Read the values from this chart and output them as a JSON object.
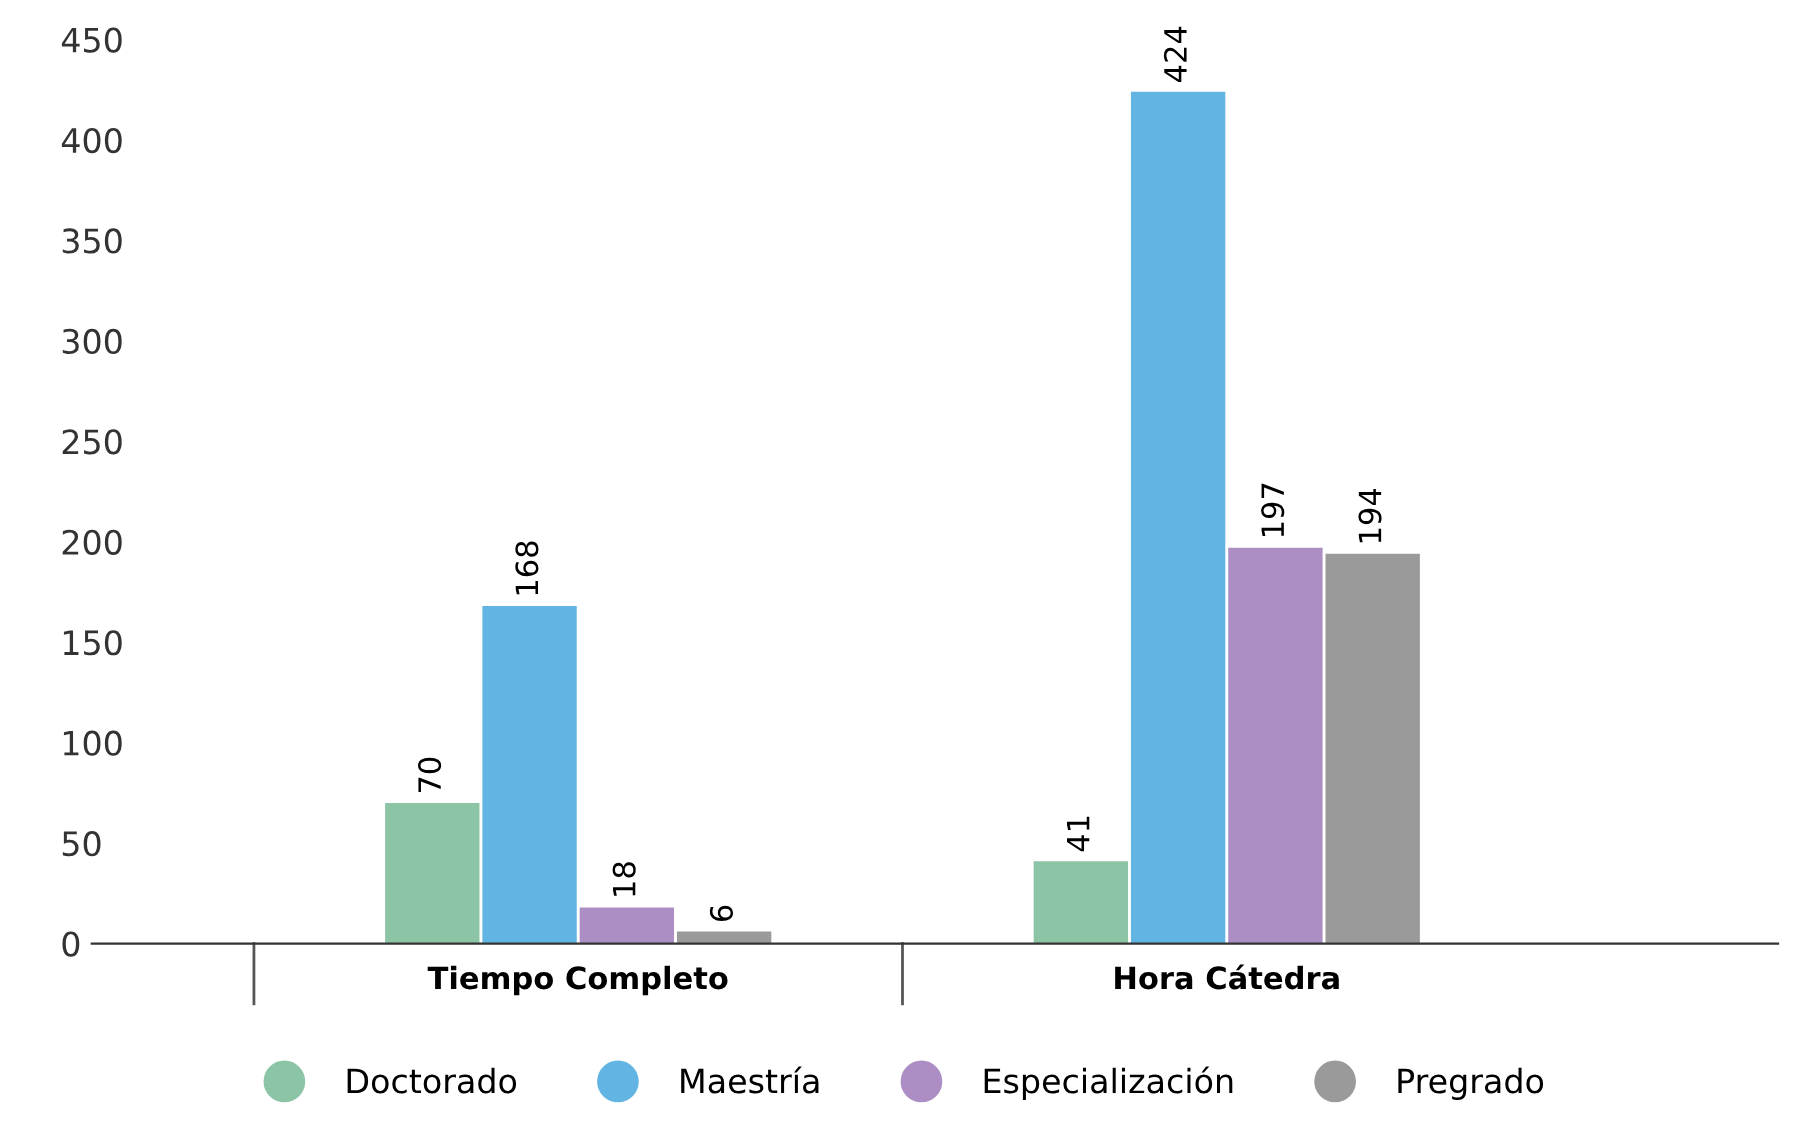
{
  "chart_data": {
    "type": "bar",
    "categories": [
      "Tiempo Completo",
      "Hora Cátedra"
    ],
    "series": [
      {
        "name": "Doctorado",
        "color": "#8cc5a5",
        "values": [
          70,
          41
        ]
      },
      {
        "name": "Maestría",
        "color": "#62b4e3",
        "values": [
          168,
          424
        ]
      },
      {
        "name": "Especialización",
        "color": "#ad8ec4",
        "values": [
          18,
          197
        ]
      },
      {
        "name": "Pregrado",
        "color": "#9a9a9a",
        "values": [
          6,
          194
        ]
      }
    ],
    "ylim": [
      0,
      450
    ],
    "yticks": [
      0,
      50,
      100,
      150,
      200,
      250,
      300,
      350,
      400,
      450
    ],
    "data_labels": true,
    "grid": false,
    "legend": "bottom"
  }
}
